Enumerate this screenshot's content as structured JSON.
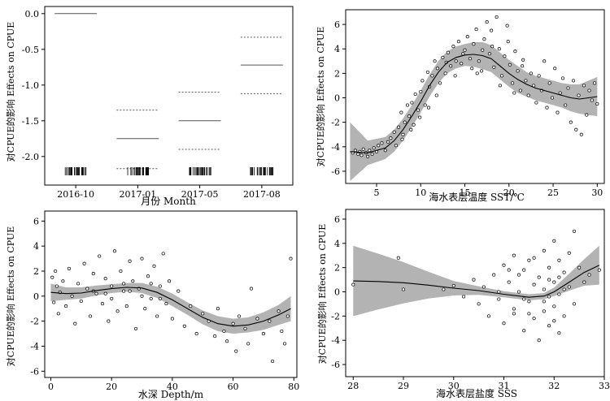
{
  "figure": {
    "panels": [
      "month",
      "sst",
      "depth",
      "sss"
    ]
  },
  "chart_data": [
    {
      "id": "month",
      "type": "categorical-effects",
      "ylabel": "对CPUE的影响 Effects on CPUE",
      "xlabel": "月份 Month",
      "categories": [
        "2016-10",
        "2017-01",
        "2017-05",
        "2017-08"
      ],
      "effect": [
        0.0,
        -1.75,
        -1.5,
        -0.72
      ],
      "upper": [
        null,
        -1.35,
        -1.1,
        -0.33
      ],
      "lower": [
        null,
        -2.17,
        -1.9,
        -1.12
      ],
      "ylim": [
        -2.4,
        0.1
      ],
      "yticks": [
        0.0,
        -0.5,
        -1.0,
        -1.5,
        -2.0
      ],
      "ytick_labels": [
        "0.0",
        "-0.5",
        "-1.0",
        "-1.5",
        "-2.0"
      ],
      "rug": "dense ticks under each category"
    },
    {
      "id": "sst",
      "type": "smooth-effect",
      "ylabel": "对CPUE的影响 Effects on CPUE",
      "xlabel": "海水表层温度 SST/℃",
      "xlim": [
        1.5,
        30.8
      ],
      "ylim": [
        -7,
        7.2
      ],
      "xticks": [
        5,
        10,
        15,
        20,
        25,
        30
      ],
      "yticks": [
        -6,
        -4,
        -2,
        0,
        2,
        4,
        6
      ],
      "curve_x": [
        2,
        4,
        6,
        7,
        8,
        9,
        10,
        11,
        12,
        13,
        14,
        15,
        16,
        17,
        18,
        19,
        20,
        21,
        22,
        23,
        24,
        25,
        26,
        27,
        28,
        29,
        30
      ],
      "curve_y": [
        -4.4,
        -4.5,
        -4.1,
        -3.5,
        -2.6,
        -1.5,
        -0.3,
        1.0,
        2.1,
        2.9,
        3.3,
        3.5,
        3.55,
        3.45,
        3.2,
        2.6,
        2.0,
        1.5,
        1.1,
        0.8,
        0.6,
        0.4,
        0.2,
        0.0,
        -0.1,
        0.0,
        0.1
      ],
      "band_half": [
        2.4,
        1.0,
        0.9,
        0.9,
        0.9,
        0.9,
        0.9,
        0.9,
        0.9,
        0.9,
        0.9,
        0.9,
        1.0,
        1.1,
        1.1,
        1.1,
        1.1,
        1.1,
        1.0,
        1.0,
        1.0,
        1.0,
        1.0,
        1.1,
        1.2,
        1.4,
        1.6
      ],
      "points": [
        [
          2.3,
          -4.5
        ],
        [
          2.6,
          -4.3
        ],
        [
          2.9,
          -4.6
        ],
        [
          3.1,
          -4.4
        ],
        [
          3.3,
          -4.7
        ],
        [
          3.5,
          -4.2
        ],
        [
          3.8,
          -4.5
        ],
        [
          4.0,
          -4.8
        ],
        [
          4.2,
          -4.3
        ],
        [
          4.5,
          -4.6
        ],
        [
          4.7,
          -4.1
        ],
        [
          5.0,
          -4.4
        ],
        [
          5.2,
          -3.9
        ],
        [
          5.6,
          -3.7
        ],
        [
          6.0,
          -4.3
        ],
        [
          6.3,
          -3.6
        ],
        [
          6.6,
          -3.3
        ],
        [
          7.0,
          -2.8
        ],
        [
          7.2,
          -3.9
        ],
        [
          7.5,
          -2.4
        ],
        [
          7.8,
          -1.2
        ],
        [
          8.0,
          -3.0
        ],
        [
          8.2,
          -2.0
        ],
        [
          8.5,
          -0.6
        ],
        [
          8.7,
          -1.5
        ],
        [
          9.0,
          -0.4
        ],
        [
          9.2,
          -2.2
        ],
        [
          9.4,
          0.3
        ],
        [
          9.7,
          -1.0
        ],
        [
          10.0,
          0.5
        ],
        [
          10.2,
          1.4
        ],
        [
          10.5,
          -0.6
        ],
        [
          10.8,
          2.1
        ],
        [
          11.0,
          0.9
        ],
        [
          11.3,
          1.8
        ],
        [
          11.6,
          3.0
        ],
        [
          11.9,
          2.4
        ],
        [
          12.2,
          1.2
        ],
        [
          12.5,
          3.3
        ],
        [
          12.8,
          2.0
        ],
        [
          13.1,
          3.7
        ],
        [
          13.4,
          2.6
        ],
        [
          13.7,
          4.2
        ],
        [
          14.0,
          3.0
        ],
        [
          14.3,
          4.6
        ],
        [
          14.6,
          2.8
        ],
        [
          15.0,
          3.9
        ],
        [
          15.3,
          5.0
        ],
        [
          15.6,
          3.2
        ],
        [
          16.0,
          4.4
        ],
        [
          16.3,
          5.6
        ],
        [
          16.6,
          3.0
        ],
        [
          16.9,
          2.2
        ],
        [
          17.2,
          4.8
        ],
        [
          17.5,
          6.2
        ],
        [
          17.8,
          3.6
        ],
        [
          18.0,
          5.5
        ],
        [
          18.3,
          2.5
        ],
        [
          18.6,
          6.6
        ],
        [
          18.9,
          4.0
        ],
        [
          19.2,
          1.8
        ],
        [
          19.5,
          3.4
        ],
        [
          19.8,
          5.9
        ],
        [
          20.1,
          2.7
        ],
        [
          20.4,
          1.2
        ],
        [
          20.7,
          3.8
        ],
        [
          21.0,
          2.2
        ],
        [
          21.3,
          0.6
        ],
        [
          21.6,
          3.1
        ],
        [
          21.9,
          1.4
        ],
        [
          22.2,
          0.2
        ],
        [
          22.5,
          2.0
        ],
        [
          22.8,
          1.0
        ],
        [
          23.1,
          -0.4
        ],
        [
          23.4,
          1.8
        ],
        [
          23.7,
          0.6
        ],
        [
          24.0,
          3.0
        ],
        [
          24.3,
          -0.8
        ],
        [
          24.6,
          1.2
        ],
        [
          24.9,
          0.0
        ],
        [
          25.2,
          2.4
        ],
        [
          25.5,
          -1.2
        ],
        [
          25.8,
          0.4
        ],
        [
          26.1,
          1.6
        ],
        [
          26.4,
          -0.6
        ],
        [
          26.7,
          0.8
        ],
        [
          27.0,
          -2.0
        ],
        [
          27.3,
          1.4
        ],
        [
          27.6,
          -2.6
        ],
        [
          27.9,
          0.2
        ],
        [
          28.2,
          -3.0
        ],
        [
          28.5,
          1.0
        ],
        [
          28.8,
          -1.4
        ],
        [
          29.1,
          0.6
        ],
        [
          29.4,
          -0.2
        ],
        [
          29.7,
          1.2
        ],
        [
          30.0,
          -0.5
        ],
        [
          16.4,
          2.0
        ],
        [
          17.0,
          3.9
        ],
        [
          18.1,
          4.2
        ],
        [
          19.0,
          1.0
        ],
        [
          19.9,
          4.6
        ],
        [
          20.6,
          0.4
        ],
        [
          21.5,
          2.6
        ],
        [
          15.8,
          2.4
        ],
        [
          14.8,
          3.6
        ],
        [
          13.9,
          1.8
        ],
        [
          12.9,
          2.9
        ],
        [
          11.8,
          0.2
        ],
        [
          10.9,
          -0.8
        ],
        [
          9.9,
          -1.6
        ],
        [
          8.9,
          -2.6
        ],
        [
          7.9,
          -3.4
        ]
      ]
    },
    {
      "id": "depth",
      "type": "smooth-effect",
      "ylabel": "对CPUE的影响 Effects on CPUE",
      "xlabel": "水深 Depth/m",
      "xlim": [
        -2,
        81
      ],
      "ylim": [
        -6.5,
        6.8
      ],
      "xticks": [
        0,
        20,
        40,
        60,
        80
      ],
      "yticks": [
        -6,
        -4,
        -2,
        0,
        2,
        4,
        6
      ],
      "curve_x": [
        0,
        5,
        10,
        15,
        20,
        25,
        30,
        35,
        40,
        45,
        50,
        55,
        60,
        65,
        70,
        75,
        79
      ],
      "curve_y": [
        0.3,
        0.2,
        0.25,
        0.45,
        0.6,
        0.7,
        0.65,
        0.3,
        -0.3,
        -1.0,
        -1.7,
        -2.2,
        -2.4,
        -2.3,
        -2.0,
        -1.5,
        -1.0
      ],
      "band_half": [
        0.7,
        0.5,
        0.45,
        0.4,
        0.35,
        0.35,
        0.4,
        0.45,
        0.5,
        0.5,
        0.55,
        0.6,
        0.6,
        0.6,
        0.7,
        0.8,
        1.0
      ],
      "points": [
        [
          0.5,
          1.5
        ],
        [
          1,
          -0.5
        ],
        [
          1.5,
          2.0
        ],
        [
          2,
          0.8
        ],
        [
          2.5,
          -1.4
        ],
        [
          3,
          0.3
        ],
        [
          4,
          1.2
        ],
        [
          5,
          -0.8
        ],
        [
          6,
          2.2
        ],
        [
          7,
          0.0
        ],
        [
          8,
          -2.2
        ],
        [
          9,
          1.0
        ],
        [
          10,
          -0.4
        ],
        [
          11,
          2.6
        ],
        [
          12,
          0.6
        ],
        [
          13,
          -1.6
        ],
        [
          14,
          1.8
        ],
        [
          15,
          0.2
        ],
        [
          16,
          3.2
        ],
        [
          17,
          -0.6
        ],
        [
          18,
          1.4
        ],
        [
          19,
          -2.0
        ],
        [
          20,
          0.8
        ],
        [
          21,
          3.6
        ],
        [
          22,
          -1.2
        ],
        [
          23,
          2.0
        ],
        [
          24,
          0.4
        ],
        [
          25,
          -0.8
        ],
        [
          26,
          2.8
        ],
        [
          27,
          1.2
        ],
        [
          28,
          -2.6
        ],
        [
          29,
          0.6
        ],
        [
          30,
          3.0
        ],
        [
          31,
          -1.0
        ],
        [
          32,
          1.6
        ],
        [
          33,
          -0.2
        ],
        [
          34,
          2.4
        ],
        [
          35,
          -1.6
        ],
        [
          36,
          0.8
        ],
        [
          37,
          3.4
        ],
        [
          38,
          -0.6
        ],
        [
          39,
          1.2
        ],
        [
          40,
          -1.8
        ],
        [
          42,
          0.4
        ],
        [
          44,
          -2.4
        ],
        [
          46,
          -0.8
        ],
        [
          48,
          -3.0
        ],
        [
          50,
          -1.4
        ],
        [
          52,
          -2.0
        ],
        [
          54,
          -3.2
        ],
        [
          55,
          -1.0
        ],
        [
          57,
          -2.8
        ],
        [
          58,
          -3.6
        ],
        [
          60,
          -2.2
        ],
        [
          61,
          -4.4
        ],
        [
          62,
          -1.6
        ],
        [
          64,
          -2.6
        ],
        [
          65,
          -3.8
        ],
        [
          66,
          0.6
        ],
        [
          68,
          -1.8
        ],
        [
          70,
          -3.0
        ],
        [
          72,
          -2.0
        ],
        [
          73,
          -5.2
        ],
        [
          75,
          -1.2
        ],
        [
          76,
          -2.8
        ],
        [
          77,
          -3.8
        ],
        [
          78,
          -1.6
        ],
        [
          79,
          3.0
        ],
        [
          18,
          0.2
        ],
        [
          24,
          1.0
        ],
        [
          30,
          0.0
        ],
        [
          14,
          0.4
        ],
        [
          20,
          -0.2
        ],
        [
          26,
          0.4
        ],
        [
          33,
          1.0
        ],
        [
          36,
          -0.2
        ]
      ]
    },
    {
      "id": "sss",
      "type": "smooth-effect",
      "ylabel": "对CPUE的影响 Effects on CPUE",
      "xlabel": "海水表层盐度 SSS",
      "xlim": [
        27.85,
        33.0
      ],
      "ylim": [
        -7,
        6.8
      ],
      "xticks": [
        28,
        29,
        30,
        31,
        32,
        33
      ],
      "yticks": [
        -6,
        -4,
        -2,
        0,
        2,
        4,
        6
      ],
      "curve_x": [
        28,
        28.5,
        29,
        29.5,
        30,
        30.5,
        31,
        31.5,
        31.8,
        32,
        32.3,
        32.6,
        32.9
      ],
      "curve_y": [
        0.9,
        0.85,
        0.75,
        0.55,
        0.3,
        0.1,
        -0.2,
        -0.45,
        -0.35,
        0.0,
        0.8,
        1.6,
        2.2
      ],
      "band_half": [
        2.9,
        2.3,
        1.7,
        1.1,
        0.6,
        0.35,
        0.25,
        0.25,
        0.25,
        0.35,
        0.7,
        1.1,
        1.6
      ],
      "points": [
        [
          28.0,
          0.6
        ],
        [
          28.9,
          2.8
        ],
        [
          29.0,
          0.2
        ],
        [
          29.8,
          0.2
        ],
        [
          30.0,
          0.5
        ],
        [
          30.2,
          -0.4
        ],
        [
          30.4,
          1.0
        ],
        [
          30.5,
          -1.0
        ],
        [
          30.6,
          0.4
        ],
        [
          30.7,
          -2.0
        ],
        [
          30.8,
          1.4
        ],
        [
          30.9,
          -0.6
        ],
        [
          31.0,
          2.2
        ],
        [
          31.0,
          -2.6
        ],
        [
          31.1,
          0.8
        ],
        [
          31.2,
          -1.4
        ],
        [
          31.2,
          3.0
        ],
        [
          31.3,
          0.0
        ],
        [
          31.4,
          -3.2
        ],
        [
          31.4,
          1.8
        ],
        [
          31.5,
          -0.8
        ],
        [
          31.5,
          2.6
        ],
        [
          31.6,
          -2.2
        ],
        [
          31.6,
          0.6
        ],
        [
          31.7,
          -4.0
        ],
        [
          31.7,
          1.2
        ],
        [
          31.8,
          -1.6
        ],
        [
          31.8,
          3.4
        ],
        [
          31.8,
          0.2
        ],
        [
          31.9,
          -2.8
        ],
        [
          31.9,
          2.0
        ],
        [
          31.9,
          -0.4
        ],
        [
          32.0,
          4.2
        ],
        [
          32.0,
          -1.2
        ],
        [
          32.0,
          0.8
        ],
        [
          32.1,
          -3.4
        ],
        [
          32.1,
          2.6
        ],
        [
          32.1,
          -0.2
        ],
        [
          32.2,
          1.6
        ],
        [
          32.2,
          -2.0
        ],
        [
          32.3,
          3.2
        ],
        [
          32.3,
          0.4
        ],
        [
          32.4,
          5.0
        ],
        [
          32.4,
          -1.0
        ],
        [
          32.5,
          2.0
        ],
        [
          32.6,
          0.8
        ],
        [
          32.7,
          1.4
        ],
        [
          32.9,
          1.8
        ],
        [
          31.3,
          1.4
        ],
        [
          31.5,
          -1.8
        ],
        [
          31.6,
          2.8
        ],
        [
          31.8,
          -0.8
        ],
        [
          31.9,
          1.0
        ],
        [
          32.0,
          -2.4
        ],
        [
          32.1,
          1.2
        ],
        [
          31.4,
          -0.6
        ],
        [
          31.2,
          -1.8
        ],
        [
          31.1,
          1.8
        ],
        [
          30.9,
          0.0
        ],
        [
          32.2,
          0.2
        ]
      ]
    }
  ]
}
